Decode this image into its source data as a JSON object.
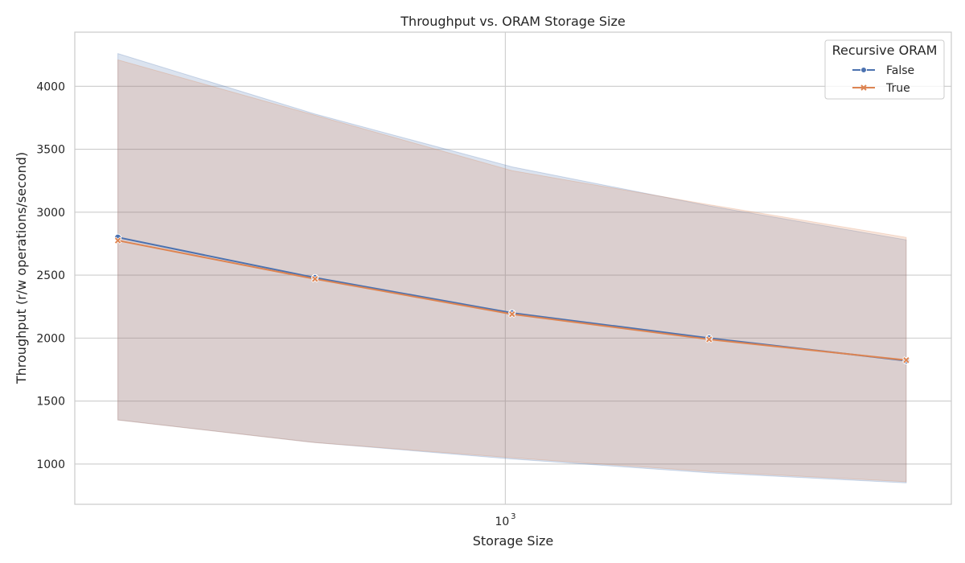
{
  "chart_data": {
    "type": "line",
    "title": "Throughput vs. ORAM Storage Size",
    "xlabel": "Storage Size",
    "ylabel": "Throughput (r/w operations/second)",
    "x_scale": "log",
    "x": [
      256,
      512,
      1024,
      2048,
      4096
    ],
    "xlim": [
      220,
      4800
    ],
    "ylim": [
      680,
      4430
    ],
    "y_ticks": [
      1000,
      1500,
      2000,
      2500,
      3000,
      3500,
      4000
    ],
    "x_ticks": [
      {
        "value": 1000,
        "label": "10",
        "exp": "3"
      }
    ],
    "grid": true,
    "legend": {
      "title": "Recursive ORAM",
      "placement": "upper-right"
    },
    "series": [
      {
        "name": "False",
        "color": "#4c72b0",
        "marker": "circle",
        "values": [
          2800,
          2480,
          2200,
          2000,
          1820
        ],
        "band_upper": [
          4260,
          3780,
          3360,
          3050,
          2780
        ],
        "band_lower": [
          1350,
          1170,
          1040,
          930,
          850
        ]
      },
      {
        "name": "True",
        "color": "#dd8452",
        "marker": "x",
        "values": [
          2775,
          2470,
          2190,
          1990,
          1825
        ],
        "band_upper": [
          4210,
          3770,
          3330,
          3060,
          2800
        ],
        "band_lower": [
          1350,
          1170,
          1050,
          940,
          860
        ]
      }
    ]
  }
}
